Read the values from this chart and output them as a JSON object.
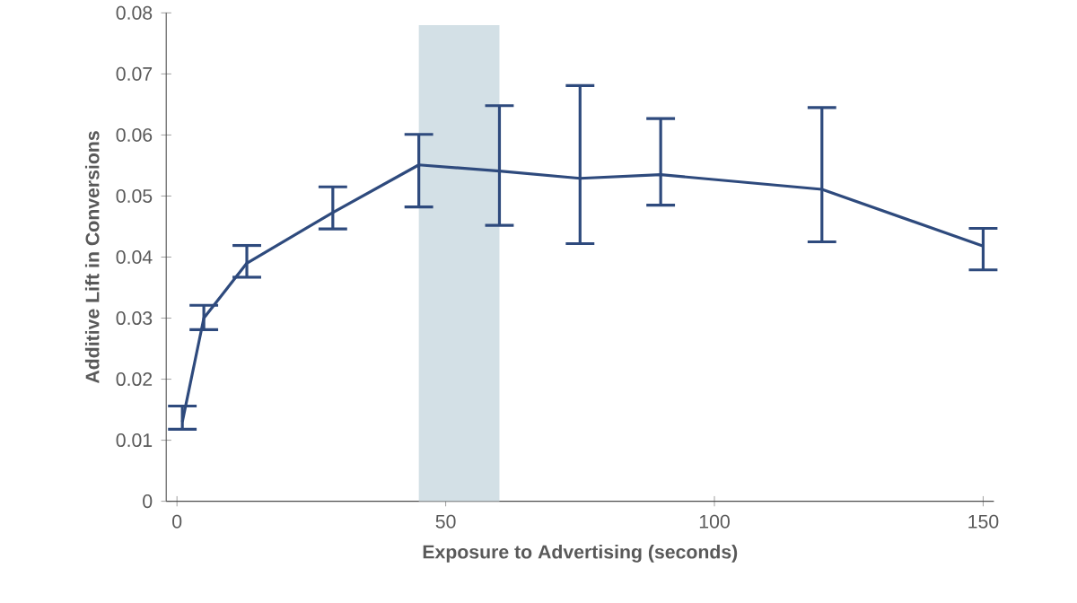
{
  "chart_data": {
    "type": "line",
    "xlabel": "Exposure to Advertising (seconds)",
    "ylabel": "Additive Lift in Conversions",
    "x": [
      1,
      5,
      13,
      29,
      45,
      60,
      75,
      90,
      120,
      150
    ],
    "series": [
      {
        "color": "#2e4a7d",
        "values": [
          0.013,
          0.03,
          0.039,
          0.0473,
          0.0551,
          0.0541,
          0.0529,
          0.0535,
          0.0511,
          0.0418
        ],
        "errors": [
          [
            0.0118,
            0.0156
          ],
          [
            0.0281,
            0.0321
          ],
          [
            0.0367,
            0.0419
          ],
          [
            0.0446,
            0.0515
          ],
          [
            0.0482,
            0.0601
          ],
          [
            0.0452,
            0.0648
          ],
          [
            0.0422,
            0.0681
          ],
          [
            0.0485,
            0.0627
          ],
          [
            0.0425,
            0.0645
          ],
          [
            0.0379,
            0.0447
          ]
        ]
      }
    ],
    "bands": [
      {
        "axis": "x",
        "from": 45,
        "to": 60,
        "color": "#d3e0e6"
      }
    ],
    "xlim": [
      -2,
      152
    ],
    "xticks": [
      0,
      50,
      100,
      150
    ],
    "ylim": [
      0,
      0.08
    ],
    "yticks": [
      0,
      0.01,
      0.02,
      0.03,
      0.04,
      0.05,
      0.06,
      0.07,
      0.08
    ],
    "grid": false,
    "marker": "none",
    "line_style": "solid"
  }
}
